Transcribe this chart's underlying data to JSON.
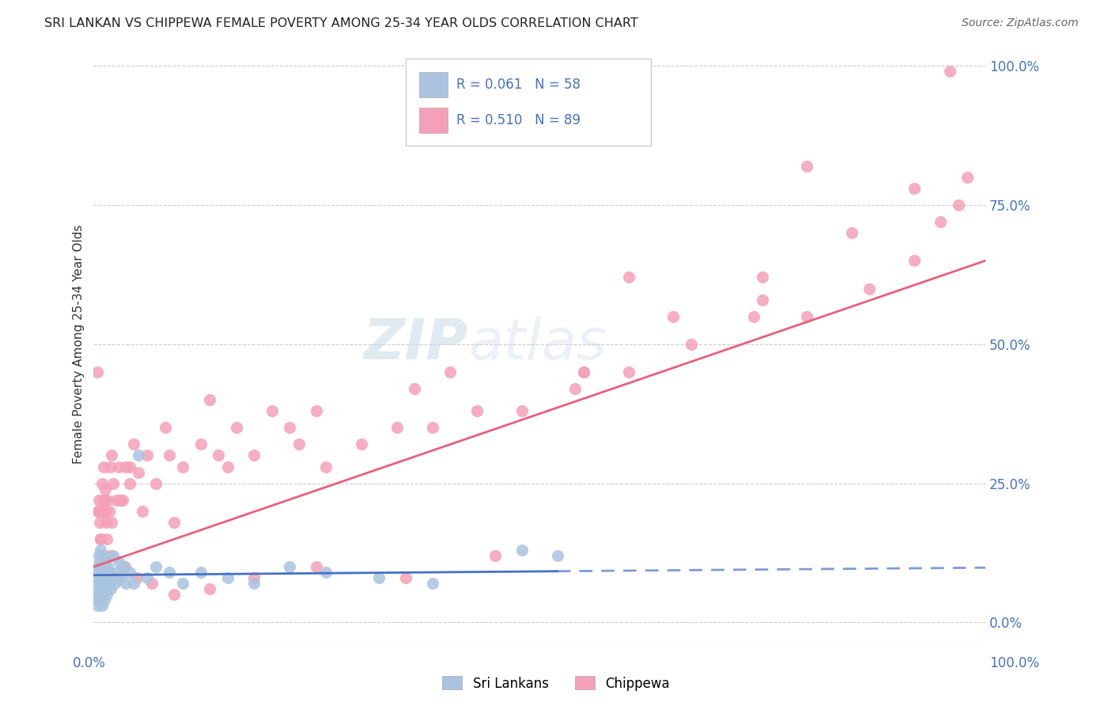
{
  "title": "SRI LANKAN VS CHIPPEWA FEMALE POVERTY AMONG 25-34 YEAR OLDS CORRELATION CHART",
  "source": "Source: ZipAtlas.com",
  "ylabel": "Female Poverty Among 25-34 Year Olds",
  "xlim": [
    0,
    1
  ],
  "ylim": [
    -0.04,
    1.04
  ],
  "ytick_values": [
    0.0,
    0.25,
    0.5,
    0.75,
    1.0
  ],
  "ytick_labels": [
    "0.0%",
    "25.0%",
    "50.0%",
    "75.0%",
    "100.0%"
  ],
  "legend_label1": "Sri Lankans",
  "legend_label2": "Chippewa",
  "legend_R1": "R = 0.061",
  "legend_N1": "N = 58",
  "legend_R2": "R = 0.510",
  "legend_N2": "N = 89",
  "color_sri": "#aac4e0",
  "color_chippewa": "#f4a0b8",
  "color_sri_line": "#4472c4",
  "color_chippewa_line": "#e8607a",
  "watermark_zip": "ZIP",
  "watermark_atlas": "atlas",
  "background_color": "#ffffff",
  "sri_x": [
    0.003,
    0.004,
    0.004,
    0.005,
    0.005,
    0.005,
    0.006,
    0.006,
    0.006,
    0.007,
    0.007,
    0.007,
    0.008,
    0.008,
    0.008,
    0.009,
    0.009,
    0.009,
    0.01,
    0.01,
    0.01,
    0.011,
    0.011,
    0.012,
    0.012,
    0.013,
    0.013,
    0.014,
    0.015,
    0.015,
    0.016,
    0.017,
    0.018,
    0.019,
    0.02,
    0.022,
    0.024,
    0.026,
    0.028,
    0.03,
    0.033,
    0.036,
    0.04,
    0.045,
    0.05,
    0.06,
    0.07,
    0.085,
    0.1,
    0.12,
    0.15,
    0.18,
    0.22,
    0.26,
    0.32,
    0.38,
    0.48,
    0.52
  ],
  "sri_y": [
    0.05,
    0.08,
    0.03,
    0.07,
    0.1,
    0.04,
    0.06,
    0.09,
    0.12,
    0.05,
    0.08,
    0.11,
    0.04,
    0.07,
    0.13,
    0.06,
    0.09,
    0.03,
    0.05,
    0.1,
    0.08,
    0.06,
    0.12,
    0.07,
    0.04,
    0.09,
    0.11,
    0.06,
    0.05,
    0.08,
    0.1,
    0.07,
    0.09,
    0.06,
    0.08,
    0.12,
    0.07,
    0.09,
    0.11,
    0.08,
    0.1,
    0.07,
    0.09,
    0.07,
    0.3,
    0.08,
    0.1,
    0.09,
    0.07,
    0.09,
    0.08,
    0.07,
    0.1,
    0.09,
    0.08,
    0.07,
    0.13,
    0.12
  ],
  "chip_x": [
    0.004,
    0.005,
    0.006,
    0.007,
    0.008,
    0.009,
    0.01,
    0.011,
    0.012,
    0.013,
    0.014,
    0.015,
    0.016,
    0.017,
    0.018,
    0.02,
    0.022,
    0.025,
    0.028,
    0.032,
    0.036,
    0.04,
    0.045,
    0.05,
    0.06,
    0.07,
    0.085,
    0.1,
    0.12,
    0.14,
    0.16,
    0.18,
    0.2,
    0.23,
    0.26,
    0.3,
    0.34,
    0.38,
    0.43,
    0.48,
    0.54,
    0.6,
    0.67,
    0.74,
    0.8,
    0.87,
    0.92,
    0.95,
    0.97,
    0.98,
    0.005,
    0.008,
    0.012,
    0.018,
    0.025,
    0.035,
    0.048,
    0.065,
    0.09,
    0.13,
    0.18,
    0.25,
    0.35,
    0.45,
    0.55,
    0.65,
    0.75,
    0.85,
    0.92,
    0.96,
    0.007,
    0.014,
    0.03,
    0.055,
    0.09,
    0.15,
    0.25,
    0.4,
    0.6,
    0.8,
    0.01,
    0.02,
    0.04,
    0.08,
    0.13,
    0.22,
    0.36,
    0.55,
    0.75
  ],
  "chip_y": [
    0.45,
    0.2,
    0.22,
    0.18,
    0.15,
    0.25,
    0.2,
    0.28,
    0.22,
    0.24,
    0.18,
    0.15,
    0.22,
    0.2,
    0.28,
    0.18,
    0.25,
    0.22,
    0.28,
    0.22,
    0.28,
    0.25,
    0.32,
    0.27,
    0.3,
    0.25,
    0.3,
    0.28,
    0.32,
    0.3,
    0.35,
    0.3,
    0.38,
    0.32,
    0.28,
    0.32,
    0.35,
    0.35,
    0.38,
    0.38,
    0.42,
    0.45,
    0.5,
    0.55,
    0.55,
    0.6,
    0.65,
    0.72,
    0.75,
    0.8,
    0.2,
    0.15,
    0.1,
    0.12,
    0.08,
    0.1,
    0.08,
    0.07,
    0.05,
    0.06,
    0.08,
    0.1,
    0.08,
    0.12,
    0.45,
    0.55,
    0.62,
    0.7,
    0.78,
    0.99,
    0.2,
    0.2,
    0.22,
    0.2,
    0.18,
    0.28,
    0.38,
    0.45,
    0.62,
    0.82,
    0.22,
    0.3,
    0.28,
    0.35,
    0.4,
    0.35,
    0.42,
    0.45,
    0.58
  ],
  "sri_line_x0": 0.0,
  "sri_line_x1": 0.52,
  "sri_line_y0": 0.085,
  "sri_line_y1": 0.092,
  "chip_line_x0": 0.0,
  "chip_line_x1": 1.0,
  "chip_line_y0": 0.1,
  "chip_line_y1": 0.65
}
